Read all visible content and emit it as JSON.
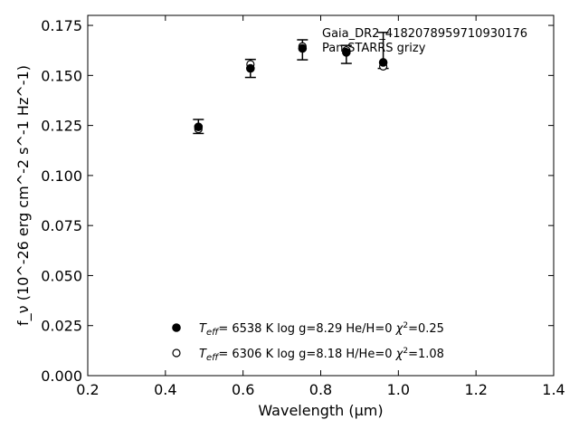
{
  "chart_data": {
    "type": "scatter",
    "title": "",
    "xlabel": "Wavelength (μm)",
    "ylabel": "f_ν (10^-26 erg cm^-2 s^-1 Hz^-1)",
    "xlim": [
      0.2,
      1.4
    ],
    "ylim": [
      0.0,
      0.18
    ],
    "x_ticks": [
      0.2,
      0.4,
      0.6,
      0.8,
      1.0,
      1.2,
      1.4
    ],
    "x_tick_labels": [
      "0.2",
      "0.4",
      "0.6",
      "0.8",
      "1.0",
      "1.2",
      "1.4"
    ],
    "y_ticks": [
      0.0,
      0.025,
      0.05,
      0.075,
      0.1,
      0.125,
      0.15,
      0.175
    ],
    "y_tick_labels": [
      "0.000",
      "0.025",
      "0.050",
      "0.075",
      "0.100",
      "0.125",
      "0.150",
      "0.175"
    ],
    "grid": false,
    "annotations": [
      "Gaia_DR2_4182078959710930176",
      "Pan-STARRS grizy"
    ],
    "observed": {
      "x": [
        0.485,
        0.619,
        0.753,
        0.866,
        0.961
      ],
      "y": [
        0.1245,
        0.1535,
        0.1628,
        0.1605,
        0.1625
      ],
      "err": [
        0.0035,
        0.0045,
        0.005,
        0.0045,
        0.009
      ]
    },
    "series": [
      {
        "name": "T_eff= 6538 K  log g=8.29  He/H=0  χ²=0.25",
        "marker": "filled-circle",
        "color": "#000000",
        "x": [
          0.485,
          0.619,
          0.753,
          0.866,
          0.961
        ],
        "y": [
          0.1243,
          0.1535,
          0.1635,
          0.1615,
          0.1565
        ]
      },
      {
        "name": "T_eff= 6306 K  log g=8.18  H/He=0  χ²=1.08",
        "marker": "open-circle",
        "color": "#000000",
        "x": [
          0.485,
          0.619,
          0.753,
          0.866,
          0.961
        ],
        "y": [
          0.1232,
          0.1556,
          0.1645,
          0.1625,
          0.1545
        ]
      }
    ],
    "legend": {
      "placement": "bottom-center",
      "entries": [
        {
          "teff": "6538 K",
          "logg": "log g=8.29",
          "comp": "He/H=0",
          "chi2": "=0.25"
        },
        {
          "teff": "6306 K",
          "logg": "log g=8.18",
          "comp": "H/He=0",
          "chi2": "=1.08"
        }
      ]
    }
  }
}
